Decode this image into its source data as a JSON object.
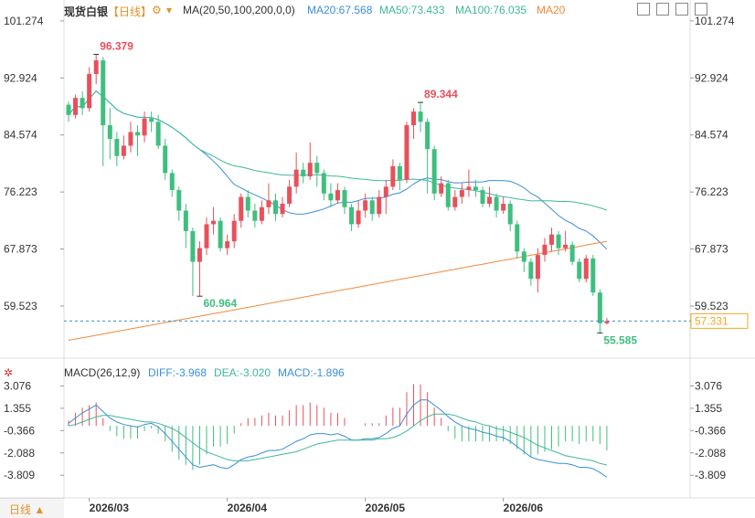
{
  "header": {
    "instrument": "现货白银",
    "period_badge": "【日线】",
    "ma_settings": "MA(20,50,100,200,0,0)",
    "ma20_label": "MA20:67.568",
    "ma50_label": "MA50:73.433",
    "ma100_label": "MA100:76.035",
    "ma20_extra": "MA20"
  },
  "macd_header": {
    "title": "MACD(26,12,9)",
    "diff_label": "DIFF:-3.968",
    "dea_label": "DEA:-3.020",
    "macd_label": "MACD:-1.896"
  },
  "bottom": {
    "period_button": "日线 ▲"
  },
  "colors": {
    "up": "#e8505b",
    "down": "#3fbf7f",
    "ma_short": "#3a8fd9",
    "ma_mid": "#3fb89a",
    "ma_long": "#f08a3c",
    "price_tag": "#f5a623"
  },
  "chart_data": [
    {
      "type": "candlestick",
      "x_labels": [
        "2026/03",
        "2026/04",
        "2026/05",
        "2026/06"
      ],
      "price_ticks": [
        "101.274",
        "92.924",
        "84.574",
        "76.223",
        "67.873",
        "59.523"
      ],
      "ylim": [
        53.5,
        103
      ],
      "current_price": "57.331",
      "annotations": [
        {
          "text": "96.379",
          "value": 96.379,
          "type": "high"
        },
        {
          "text": "60.964",
          "value": 60.964,
          "type": "low"
        },
        {
          "text": "89.344",
          "value": 89.344,
          "type": "high"
        },
        {
          "text": "55.585",
          "value": 55.585,
          "type": "low"
        }
      ],
      "candles": [
        [
          89.0,
          87.5,
          89.5,
          86.5
        ],
        [
          87.5,
          90.0,
          90.5,
          87.0
        ],
        [
          90.0,
          88.5,
          91.0,
          87.5
        ],
        [
          88.5,
          93.5,
          94.5,
          88.0
        ],
        [
          93.5,
          95.5,
          96.379,
          92.0
        ],
        [
          95.5,
          86.0,
          96.0,
          80.0
        ],
        [
          86.0,
          84.0,
          88.5,
          81.0
        ],
        [
          84.0,
          81.5,
          85.0,
          80.0
        ],
        [
          81.5,
          83.0,
          84.5,
          81.0
        ],
        [
          83.0,
          85.0,
          86.5,
          82.0
        ],
        [
          85.0,
          84.5,
          86.0,
          81.5
        ],
        [
          84.5,
          87.0,
          88.0,
          83.5
        ],
        [
          87.0,
          86.5,
          88.0,
          85.0
        ],
        [
          86.5,
          83.0,
          87.5,
          82.5
        ],
        [
          83.0,
          79.0,
          84.0,
          78.0
        ],
        [
          79.0,
          76.5,
          79.5,
          75.5
        ],
        [
          76.5,
          73.5,
          77.0,
          72.0
        ],
        [
          73.5,
          70.5,
          74.5,
          68.0
        ],
        [
          70.5,
          66.0,
          71.0,
          61.0
        ],
        [
          66.0,
          68.0,
          69.0,
          60.964
        ],
        [
          68.0,
          71.5,
          72.5,
          67.0
        ],
        [
          71.5,
          72.0,
          74.0,
          70.0
        ],
        [
          72.0,
          68.0,
          72.5,
          67.5
        ],
        [
          68.0,
          69.0,
          70.0,
          67.0
        ],
        [
          69.0,
          72.0,
          73.0,
          68.0
        ],
        [
          72.0,
          75.5,
          76.0,
          71.0
        ],
        [
          75.5,
          73.5,
          76.5,
          72.5
        ],
        [
          73.5,
          72.0,
          74.5,
          71.0
        ],
        [
          72.0,
          74.0,
          75.0,
          71.5
        ],
        [
          74.0,
          75.0,
          77.5,
          73.0
        ],
        [
          75.0,
          73.0,
          76.0,
          72.0
        ],
        [
          73.0,
          74.5,
          75.5,
          72.5
        ],
        [
          74.5,
          77.0,
          78.0,
          74.0
        ],
        [
          77.0,
          79.5,
          82.0,
          76.0
        ],
        [
          79.5,
          78.5,
          80.5,
          77.5
        ],
        [
          78.5,
          80.5,
          83.5,
          78.0
        ],
        [
          80.5,
          79.0,
          81.5,
          77.0
        ],
        [
          79.0,
          76.0,
          79.5,
          75.0
        ],
        [
          76.0,
          75.0,
          77.5,
          74.0
        ],
        [
          75.0,
          76.5,
          77.5,
          74.5
        ],
        [
          76.5,
          74.0,
          77.0,
          73.0
        ],
        [
          74.0,
          71.5,
          74.5,
          70.5
        ],
        [
          71.5,
          73.5,
          75.0,
          71.0
        ],
        [
          73.5,
          75.0,
          76.0,
          72.5
        ],
        [
          75.0,
          73.0,
          75.5,
          72.0
        ],
        [
          73.0,
          75.5,
          76.5,
          72.5
        ],
        [
          75.5,
          77.0,
          78.0,
          73.0
        ],
        [
          77.0,
          80.0,
          81.0,
          76.5
        ],
        [
          80.0,
          78.0,
          80.5,
          76.5
        ],
        [
          78.0,
          86.0,
          86.5,
          77.5
        ],
        [
          86.0,
          88.0,
          88.5,
          84.0
        ],
        [
          88.0,
          86.5,
          89.344,
          85.0
        ],
        [
          86.5,
          82.5,
          87.0,
          76.0
        ],
        [
          82.5,
          76.0,
          83.0,
          75.0
        ],
        [
          76.0,
          77.5,
          78.5,
          75.5
        ],
        [
          77.5,
          74.0,
          78.0,
          73.5
        ],
        [
          74.0,
          75.5,
          76.5,
          73.5
        ],
        [
          75.5,
          76.5,
          77.5,
          74.5
        ],
        [
          76.5,
          77.0,
          79.5,
          75.5
        ],
        [
          77.0,
          76.5,
          78.0,
          75.5
        ],
        [
          76.5,
          74.5,
          77.0,
          74.0
        ],
        [
          74.5,
          75.5,
          77.0,
          74.0
        ],
        [
          75.5,
          73.5,
          76.0,
          72.5
        ],
        [
          73.5,
          74.5,
          75.5,
          73.0
        ],
        [
          74.5,
          71.5,
          75.0,
          70.5
        ],
        [
          71.5,
          67.5,
          72.0,
          66.5
        ],
        [
          67.5,
          66.0,
          68.0,
          64.5
        ],
        [
          66.0,
          63.5,
          66.5,
          62.5
        ],
        [
          63.5,
          67.0,
          68.0,
          61.5
        ],
        [
          67.0,
          68.5,
          69.5,
          66.0
        ],
        [
          68.5,
          70.0,
          71.0,
          67.5
        ],
        [
          70.0,
          68.0,
          70.5,
          67.0
        ],
        [
          68.0,
          68.5,
          70.5,
          67.5
        ],
        [
          68.5,
          66.0,
          69.0,
          65.5
        ],
        [
          66.0,
          63.5,
          66.5,
          63.0
        ],
        [
          63.5,
          66.5,
          67.0,
          63.0
        ],
        [
          66.5,
          61.5,
          67.0,
          61.0
        ],
        [
          61.5,
          57.0,
          62.0,
          55.585
        ],
        [
          57.0,
          57.3,
          57.8,
          56.8
        ]
      ]
    },
    {
      "type": "macd",
      "title": "MACD(26,12,9)",
      "ticks": [
        "3.076",
        "1.355",
        "-0.366",
        "-2.088",
        "-3.809"
      ],
      "ylim": [
        -4.5,
        3.6
      ],
      "series": [
        {
          "name": "DIFF",
          "values": [
            0.2,
            0.6,
            1.0,
            1.3,
            1.6,
            1.1,
            0.6,
            0.3,
            0.1,
            0.0,
            -0.1,
            0.1,
            0.2,
            -0.1,
            -0.6,
            -1.2,
            -1.8,
            -2.4,
            -3.0,
            -3.2,
            -3.1,
            -3.0,
            -3.2,
            -3.3,
            -3.0,
            -2.6,
            -2.4,
            -2.3,
            -2.1,
            -1.9,
            -1.9,
            -1.8,
            -1.5,
            -1.2,
            -1.0,
            -0.7,
            -0.6,
            -0.6,
            -0.7,
            -0.6,
            -0.8,
            -1.1,
            -1.1,
            -1.0,
            -1.0,
            -0.9,
            -0.6,
            -0.2,
            0.0,
            0.9,
            1.6,
            2.0,
            2.0,
            1.6,
            1.2,
            0.7,
            0.3,
            0.0,
            -0.2,
            -0.3,
            -0.5,
            -0.6,
            -0.8,
            -0.9,
            -1.2,
            -1.6,
            -2.0,
            -2.4,
            -2.6,
            -2.7,
            -2.8,
            -2.9,
            -2.9,
            -3.0,
            -3.2,
            -3.2,
            -3.3,
            -3.6,
            -3.968
          ]
        },
        {
          "name": "DEA",
          "values": [
            0.0,
            0.1,
            0.3,
            0.5,
            0.7,
            0.8,
            0.8,
            0.7,
            0.6,
            0.5,
            0.4,
            0.3,
            0.3,
            0.2,
            0.0,
            -0.2,
            -0.5,
            -0.9,
            -1.3,
            -1.7,
            -2.0,
            -2.2,
            -2.4,
            -2.6,
            -2.7,
            -2.7,
            -2.7,
            -2.6,
            -2.5,
            -2.4,
            -2.3,
            -2.2,
            -2.1,
            -2.0,
            -1.8,
            -1.6,
            -1.4,
            -1.3,
            -1.2,
            -1.1,
            -1.1,
            -1.1,
            -1.1,
            -1.1,
            -1.1,
            -1.0,
            -1.0,
            -0.9,
            -0.7,
            -0.4,
            0.0,
            0.4,
            0.7,
            0.9,
            0.9,
            0.9,
            0.8,
            0.6,
            0.4,
            0.3,
            0.1,
            0.0,
            -0.2,
            -0.3,
            -0.5,
            -0.7,
            -0.9,
            -1.2,
            -1.5,
            -1.7,
            -1.9,
            -2.1,
            -2.3,
            -2.4,
            -2.5,
            -2.6,
            -2.7,
            -2.9,
            -3.02
          ]
        },
        {
          "name": "MACD",
          "values": [
            0.4,
            1.0,
            1.4,
            1.6,
            1.8,
            0.6,
            -0.4,
            -0.8,
            -1.0,
            -1.0,
            -1.0,
            -0.4,
            -0.2,
            -0.6,
            -1.2,
            -2.0,
            -2.6,
            -3.0,
            -3.4,
            -3.0,
            -2.2,
            -1.6,
            -1.6,
            -1.4,
            -0.6,
            0.2,
            0.6,
            0.6,
            0.8,
            1.0,
            0.8,
            0.8,
            1.2,
            1.6,
            1.6,
            1.8,
            1.6,
            1.4,
            1.0,
            1.0,
            0.6,
            0.0,
            0.0,
            0.2,
            0.2,
            0.2,
            0.8,
            1.4,
            1.4,
            2.6,
            3.2,
            3.2,
            2.6,
            1.4,
            0.6,
            -0.4,
            -1.0,
            -1.2,
            -1.2,
            -1.2,
            -1.2,
            -1.2,
            -1.2,
            -1.2,
            -1.4,
            -1.8,
            -2.2,
            -2.4,
            -2.2,
            -2.0,
            -1.8,
            -1.6,
            -1.2,
            -1.2,
            -1.4,
            -1.2,
            -1.2,
            -1.4,
            -1.896
          ]
        }
      ]
    }
  ]
}
